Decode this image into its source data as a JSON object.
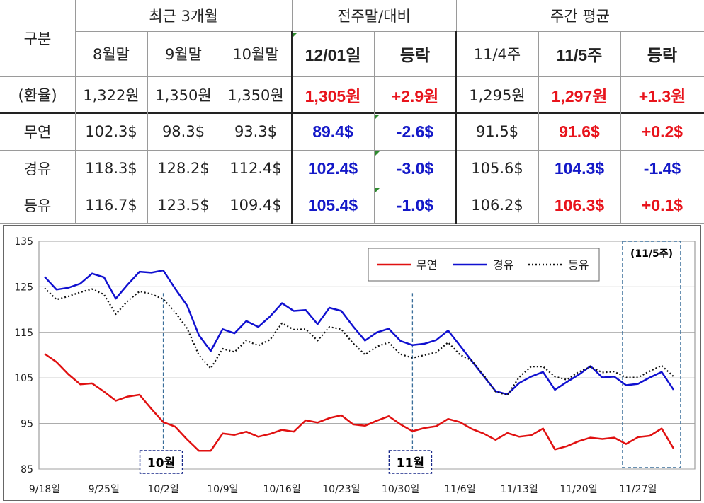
{
  "table": {
    "group_headers": [
      "최근 3개월",
      "전주말/대비",
      "주간 평균"
    ],
    "col_headers": [
      "구분",
      "8월말",
      "9월말",
      "10월말",
      "12/01일",
      "등락",
      "11/4주",
      "11/5주",
      "등락"
    ],
    "rows": [
      {
        "label": "(환율)",
        "cells": [
          "1,322원",
          "1,350원",
          "1,350원",
          "1,305원",
          "+2.9원",
          "1,295원",
          "1,297원",
          "+1.3원"
        ]
      },
      {
        "label": "무연",
        "cells": [
          "102.3$",
          "98.3$",
          "93.3$",
          "89.4$",
          "-2.6$",
          "91.5$",
          "91.6$",
          "+0.2$"
        ]
      },
      {
        "label": "경유",
        "cells": [
          "118.3$",
          "128.2$",
          "112.4$",
          "102.4$",
          "-3.0$",
          "105.6$",
          "104.3$",
          "-1.4$"
        ]
      },
      {
        "label": "등유",
        "cells": [
          "116.7$",
          "123.5$",
          "109.4$",
          "105.4$",
          "-1.0$",
          "106.2$",
          "106.3$",
          "+0.1$"
        ]
      }
    ],
    "colors": {
      "red": "#e8141c",
      "blue": "#1419c8"
    }
  },
  "chart_data": {
    "type": "line",
    "ylim": [
      85,
      135
    ],
    "yticks": [
      85,
      95,
      105,
      115,
      125,
      135
    ],
    "xticklabels": [
      "9/18일",
      "9/25일",
      "10/2일",
      "10/9일",
      "10/16일",
      "10/23일",
      "10/30일",
      "11/6일",
      "11/13일",
      "11/20일",
      "11/27일"
    ],
    "grid": true,
    "legend": "top-right",
    "annotations": [
      {
        "text": "10월",
        "at_index": 10
      },
      {
        "text": "11월",
        "at_index": 31
      },
      {
        "text": "(11/5주)"
      }
    ],
    "series": [
      {
        "name": "무연",
        "color": "#e01010",
        "style": "solid",
        "values": [
          110.3,
          108.5,
          105.8,
          103.6,
          103.8,
          102.0,
          100.0,
          100.9,
          101.3,
          98.2,
          95.3,
          94.3,
          91.5,
          89.0,
          89.0,
          92.8,
          92.5,
          93.2,
          92.1,
          92.7,
          93.6,
          93.2,
          95.7,
          95.2,
          96.2,
          96.8,
          94.8,
          94.5,
          95.6,
          96.6,
          94.8,
          93.3,
          94.0,
          94.4,
          96.0,
          95.3,
          93.8,
          92.8,
          91.4,
          92.9,
          92.1,
          92.4,
          93.9,
          89.3,
          90.0,
          91.1,
          91.9,
          91.6,
          91.9,
          90.5,
          92.0,
          92.3,
          93.9,
          89.5
        ]
      },
      {
        "name": "경유",
        "color": "#1010d0",
        "style": "solid",
        "values": [
          127.2,
          124.4,
          124.8,
          125.7,
          127.9,
          127.1,
          122.4,
          125.5,
          128.3,
          128.1,
          128.6,
          124.6,
          120.9,
          114.4,
          110.9,
          115.7,
          114.8,
          117.5,
          116.2,
          118.5,
          121.4,
          119.7,
          119.9,
          116.8,
          120.4,
          119.7,
          116.3,
          113.2,
          115.0,
          115.8,
          113.1,
          112.2,
          112.5,
          113.3,
          115.4,
          112.1,
          108.7,
          105.4,
          102.1,
          101.4,
          103.9,
          105.3,
          106.3,
          102.4,
          104.1,
          105.7,
          107.6,
          105.1,
          105.3,
          103.4,
          103.7,
          105.1,
          106.3,
          102.4
        ]
      },
      {
        "name": "등유",
        "color": "#111111",
        "style": "dotted",
        "values": [
          124.7,
          122.2,
          122.9,
          123.8,
          124.5,
          123.3,
          119.0,
          121.9,
          124.0,
          123.4,
          122.3,
          119.4,
          115.9,
          110.0,
          107.1,
          111.4,
          110.7,
          113.2,
          112.1,
          113.4,
          117.0,
          115.6,
          115.7,
          113.2,
          116.2,
          115.7,
          112.6,
          110.1,
          111.9,
          112.8,
          110.2,
          109.4,
          110.0,
          110.6,
          112.8,
          110.1,
          108.8,
          105.6,
          102.0,
          101.2,
          105.2,
          107.5,
          107.5,
          105.3,
          104.6,
          106.3,
          107.4,
          106.2,
          106.4,
          105.1,
          105.1,
          106.5,
          107.7,
          105.3
        ]
      }
    ]
  }
}
